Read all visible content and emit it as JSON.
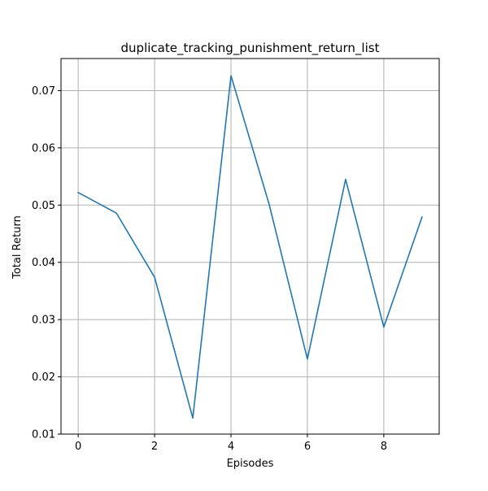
{
  "chart_data": {
    "type": "line",
    "title": "duplicate_tracking_punishment_return_list",
    "xlabel": "Episodes",
    "ylabel": "Total Return",
    "x": [
      0,
      1,
      2,
      3,
      4,
      5,
      6,
      7,
      8,
      9
    ],
    "series": [
      {
        "values": [
          0.0522,
          0.0486,
          0.0374,
          0.0128,
          0.0726,
          0.0501,
          0.0231,
          0.0545,
          0.0287,
          0.0479
        ],
        "color": "#1f77b4"
      }
    ],
    "xlim": [
      -0.45,
      9.45
    ],
    "ylim": [
      0.01,
      0.0756
    ],
    "xticks": [
      0,
      2,
      4,
      6,
      8
    ],
    "xtick_labels": [
      "0",
      "2",
      "4",
      "6",
      "8"
    ],
    "yticks": [
      0.01,
      0.02,
      0.03,
      0.04,
      0.05,
      0.06,
      0.07
    ],
    "ytick_labels": [
      "0.01",
      "0.02",
      "0.03",
      "0.04",
      "0.05",
      "0.06",
      "0.07"
    ],
    "grid": true,
    "legend": "none"
  }
}
